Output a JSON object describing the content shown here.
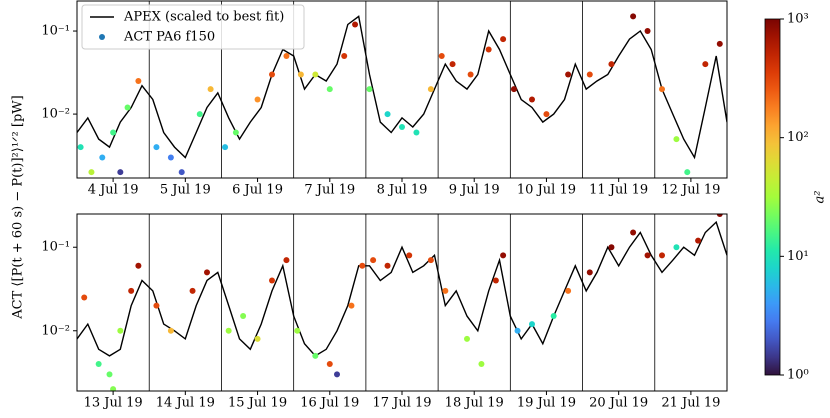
{
  "ylabel": "ACT ⟨[P(t + 60 s) − P(t)]²⟩¹ᐟ² [pW]",
  "colorbar": {
    "label": "a²",
    "colormap": "turbo",
    "scale": "log",
    "lim": [
      1,
      1000
    ],
    "ticks": [
      {
        "value": 1,
        "label": "10⁰"
      },
      {
        "value": 10,
        "label": "10¹"
      },
      {
        "value": 100,
        "label": "10²"
      },
      {
        "value": 1000,
        "label": "10³"
      }
    ]
  },
  "chart_data": [
    {
      "type": "line",
      "yscale": "log",
      "legend": "upper left",
      "xlim": [
        4,
        13
      ],
      "ylim": [
        0.0017,
        0.23
      ],
      "xticks": [
        {
          "value": 4.5,
          "label": "4 Jul 19"
        },
        {
          "value": 5.5,
          "label": "5 Jul 19"
        },
        {
          "value": 6.5,
          "label": "6 Jul 19"
        },
        {
          "value": 7.5,
          "label": "7 Jul 19"
        },
        {
          "value": 8.5,
          "label": "8 Jul 19"
        },
        {
          "value": 9.5,
          "label": "9 Jul 19"
        },
        {
          "value": 10.5,
          "label": "10 Jul 19"
        },
        {
          "value": 11.5,
          "label": "11 Jul 19"
        },
        {
          "value": 12.5,
          "label": "12 Jul 19"
        }
      ],
      "day_lines": [
        5,
        6,
        7,
        8,
        9,
        10,
        11,
        12
      ],
      "yticks": [
        {
          "value": 0.01,
          "label": "10⁻²"
        },
        {
          "value": 0.1,
          "label": "10⁻¹"
        }
      ],
      "series": [
        {
          "name": "APEX (scaled to best fit)",
          "type": "line",
          "color": "#000000",
          "x": [
            4.0,
            4.15,
            4.3,
            4.45,
            4.6,
            4.75,
            4.9,
            5.05,
            5.2,
            5.35,
            5.5,
            5.65,
            5.8,
            5.95,
            6.1,
            6.25,
            6.4,
            6.55,
            6.7,
            6.85,
            7.0,
            7.15,
            7.3,
            7.45,
            7.6,
            7.75,
            7.9,
            8.05,
            8.2,
            8.35,
            8.5,
            8.65,
            8.8,
            8.95,
            9.1,
            9.25,
            9.4,
            9.55,
            9.7,
            9.85,
            10.0,
            10.15,
            10.3,
            10.45,
            10.6,
            10.75,
            10.9,
            11.05,
            11.2,
            11.35,
            11.5,
            11.65,
            11.8,
            11.95,
            12.1,
            12.25,
            12.4,
            12.55,
            12.7,
            12.85,
            13.0
          ],
          "values": [
            0.006,
            0.009,
            0.005,
            0.004,
            0.008,
            0.012,
            0.022,
            0.015,
            0.006,
            0.004,
            0.003,
            0.006,
            0.012,
            0.018,
            0.009,
            0.005,
            0.008,
            0.012,
            0.03,
            0.06,
            0.05,
            0.02,
            0.03,
            0.025,
            0.04,
            0.12,
            0.15,
            0.03,
            0.008,
            0.006,
            0.009,
            0.007,
            0.01,
            0.02,
            0.04,
            0.025,
            0.02,
            0.03,
            0.1,
            0.06,
            0.03,
            0.015,
            0.012,
            0.008,
            0.01,
            0.015,
            0.04,
            0.02,
            0.025,
            0.03,
            0.05,
            0.08,
            0.1,
            0.06,
            0.02,
            0.01,
            0.005,
            0.003,
            0.012,
            0.05,
            0.008
          ]
        },
        {
          "name": "ACT PA6 f150",
          "type": "scatter",
          "color": "#1f77b4",
          "x": [
            4.05,
            4.2,
            4.35,
            4.5,
            4.7,
            4.85,
            4.6,
            5.1,
            5.3,
            5.45,
            5.7,
            5.85,
            6.05,
            6.2,
            6.5,
            6.7,
            6.9,
            7.1,
            7.3,
            7.5,
            7.7,
            7.85,
            8.05,
            8.3,
            8.5,
            8.7,
            8.9,
            9.05,
            9.2,
            9.45,
            9.7,
            9.9,
            10.05,
            10.3,
            10.5,
            10.8,
            11.1,
            11.4,
            11.7,
            11.9,
            12.1,
            12.3,
            12.45,
            12.7,
            12.9
          ],
          "values": [
            0.004,
            0.002,
            0.003,
            0.006,
            0.012,
            0.025,
            0.002,
            0.004,
            0.003,
            0.002,
            0.01,
            0.02,
            0.004,
            0.006,
            0.015,
            0.03,
            0.05,
            0.03,
            0.03,
            0.02,
            0.05,
            0.12,
            0.02,
            0.01,
            0.007,
            0.006,
            0.02,
            0.05,
            0.04,
            0.03,
            0.06,
            0.08,
            0.02,
            0.015,
            0.01,
            0.03,
            0.03,
            0.04,
            0.15,
            0.1,
            0.02,
            0.005,
            0.002,
            0.04,
            0.07
          ],
          "c": [
            10,
            40,
            5,
            15,
            20,
            200,
            1.5,
            5,
            3,
            2,
            15,
            100,
            6,
            20,
            150,
            300,
            200,
            100,
            50,
            20,
            400,
            600,
            20,
            8,
            10,
            10,
            100,
            300,
            500,
            300,
            400,
            500,
            800,
            600,
            300,
            700,
            300,
            500,
            900,
            800,
            200,
            30,
            15,
            500,
            800
          ]
        }
      ]
    },
    {
      "type": "line",
      "yscale": "log",
      "xlim": [
        13,
        22
      ],
      "ylim": [
        0.0019,
        0.25
      ],
      "xticks": [
        {
          "value": 13.5,
          "label": "13 Jul 19"
        },
        {
          "value": 14.5,
          "label": "14 Jul 19"
        },
        {
          "value": 15.5,
          "label": "15 Jul 19"
        },
        {
          "value": 16.5,
          "label": "16 Jul 19"
        },
        {
          "value": 17.5,
          "label": "17 Jul 19"
        },
        {
          "value": 18.5,
          "label": "18 Jul 19"
        },
        {
          "value": 19.5,
          "label": "19 Jul 19"
        },
        {
          "value": 20.5,
          "label": "20 Jul 19"
        },
        {
          "value": 21.5,
          "label": "21 Jul 19"
        }
      ],
      "day_lines": [
        14,
        15,
        16,
        17,
        18,
        19,
        20,
        21
      ],
      "yticks": [
        {
          "value": 0.01,
          "label": "10⁻²"
        },
        {
          "value": 0.1,
          "label": "10⁻¹"
        }
      ],
      "series": [
        {
          "type": "line",
          "color": "#000000",
          "x": [
            13.0,
            13.15,
            13.3,
            13.45,
            13.6,
            13.75,
            13.9,
            14.05,
            14.2,
            14.35,
            14.5,
            14.65,
            14.8,
            14.95,
            15.1,
            15.25,
            15.4,
            15.55,
            15.7,
            15.85,
            16.0,
            16.15,
            16.3,
            16.45,
            16.6,
            16.75,
            16.9,
            17.05,
            17.2,
            17.35,
            17.5,
            17.65,
            17.8,
            17.95,
            18.1,
            18.25,
            18.4,
            18.55,
            18.7,
            18.85,
            19.0,
            19.15,
            19.3,
            19.45,
            19.6,
            19.75,
            19.9,
            20.05,
            20.2,
            20.35,
            20.5,
            20.65,
            20.8,
            20.95,
            21.1,
            21.25,
            21.4,
            21.55,
            21.7,
            21.85,
            22.0
          ],
          "values": [
            0.008,
            0.012,
            0.006,
            0.005,
            0.006,
            0.02,
            0.04,
            0.03,
            0.012,
            0.01,
            0.008,
            0.02,
            0.04,
            0.05,
            0.02,
            0.008,
            0.006,
            0.012,
            0.03,
            0.06,
            0.015,
            0.007,
            0.005,
            0.006,
            0.01,
            0.02,
            0.06,
            0.06,
            0.04,
            0.05,
            0.1,
            0.05,
            0.06,
            0.08,
            0.02,
            0.03,
            0.015,
            0.01,
            0.03,
            0.07,
            0.015,
            0.008,
            0.012,
            0.007,
            0.015,
            0.03,
            0.06,
            0.03,
            0.05,
            0.1,
            0.06,
            0.1,
            0.15,
            0.08,
            0.05,
            0.07,
            0.1,
            0.08,
            0.15,
            0.2,
            0.08
          ]
        },
        {
          "type": "scatter",
          "x": [
            13.1,
            13.3,
            13.45,
            13.6,
            13.75,
            13.85,
            13.5,
            14.1,
            14.3,
            14.6,
            14.8,
            15.1,
            15.3,
            15.5,
            15.7,
            15.9,
            16.05,
            16.3,
            16.5,
            16.6,
            16.8,
            16.95,
            17.1,
            17.3,
            17.6,
            17.9,
            18.1,
            18.4,
            18.6,
            18.8,
            18.9,
            19.1,
            19.3,
            19.6,
            19.8,
            20.1,
            20.4,
            20.7,
            20.9,
            21.1,
            21.3,
            21.6,
            21.9
          ],
          "values": [
            0.025,
            0.004,
            0.003,
            0.01,
            0.03,
            0.06,
            0.002,
            0.02,
            0.01,
            0.03,
            0.05,
            0.01,
            0.015,
            0.008,
            0.04,
            0.07,
            0.01,
            0.005,
            0.004,
            0.003,
            0.02,
            0.06,
            0.07,
            0.06,
            0.08,
            0.07,
            0.03,
            0.008,
            0.004,
            0.04,
            0.08,
            0.01,
            0.012,
            0.015,
            0.03,
            0.05,
            0.1,
            0.15,
            0.08,
            0.08,
            0.1,
            0.12,
            0.25
          ],
          "c": [
            300,
            15,
            20,
            30,
            500,
            700,
            25,
            300,
            100,
            500,
            700,
            30,
            25,
            60,
            400,
            500,
            30,
            20,
            300,
            1.5,
            200,
            300,
            300,
            500,
            400,
            300,
            200,
            30,
            30,
            500,
            800,
            5,
            8,
            12,
            200,
            800,
            900,
            800,
            700,
            500,
            10,
            600,
            900
          ]
        }
      ]
    }
  ]
}
